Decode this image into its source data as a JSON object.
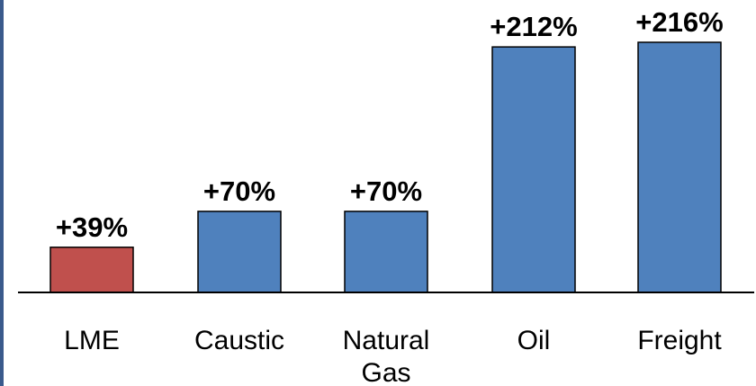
{
  "chart_data": {
    "type": "bar",
    "title": "",
    "xlabel": "",
    "ylabel": "",
    "categories": [
      [
        "LME"
      ],
      [
        "Caustic"
      ],
      [
        "Natural",
        "Gas"
      ],
      [
        "Oil"
      ],
      [
        "Freight"
      ]
    ],
    "values": [
      39,
      70,
      70,
      212,
      216
    ],
    "data_labels": [
      "+39%",
      "+70%",
      "+70%",
      "+212%",
      "+216%"
    ],
    "ylim": [
      0,
      216
    ],
    "grid": false,
    "legend": "none",
    "colors": {
      "highlight": "#c0504d",
      "bar": "#4f81bd",
      "bar_outline": "#000000",
      "axis": "#000000",
      "left_rule": "#3a5a8c"
    }
  }
}
